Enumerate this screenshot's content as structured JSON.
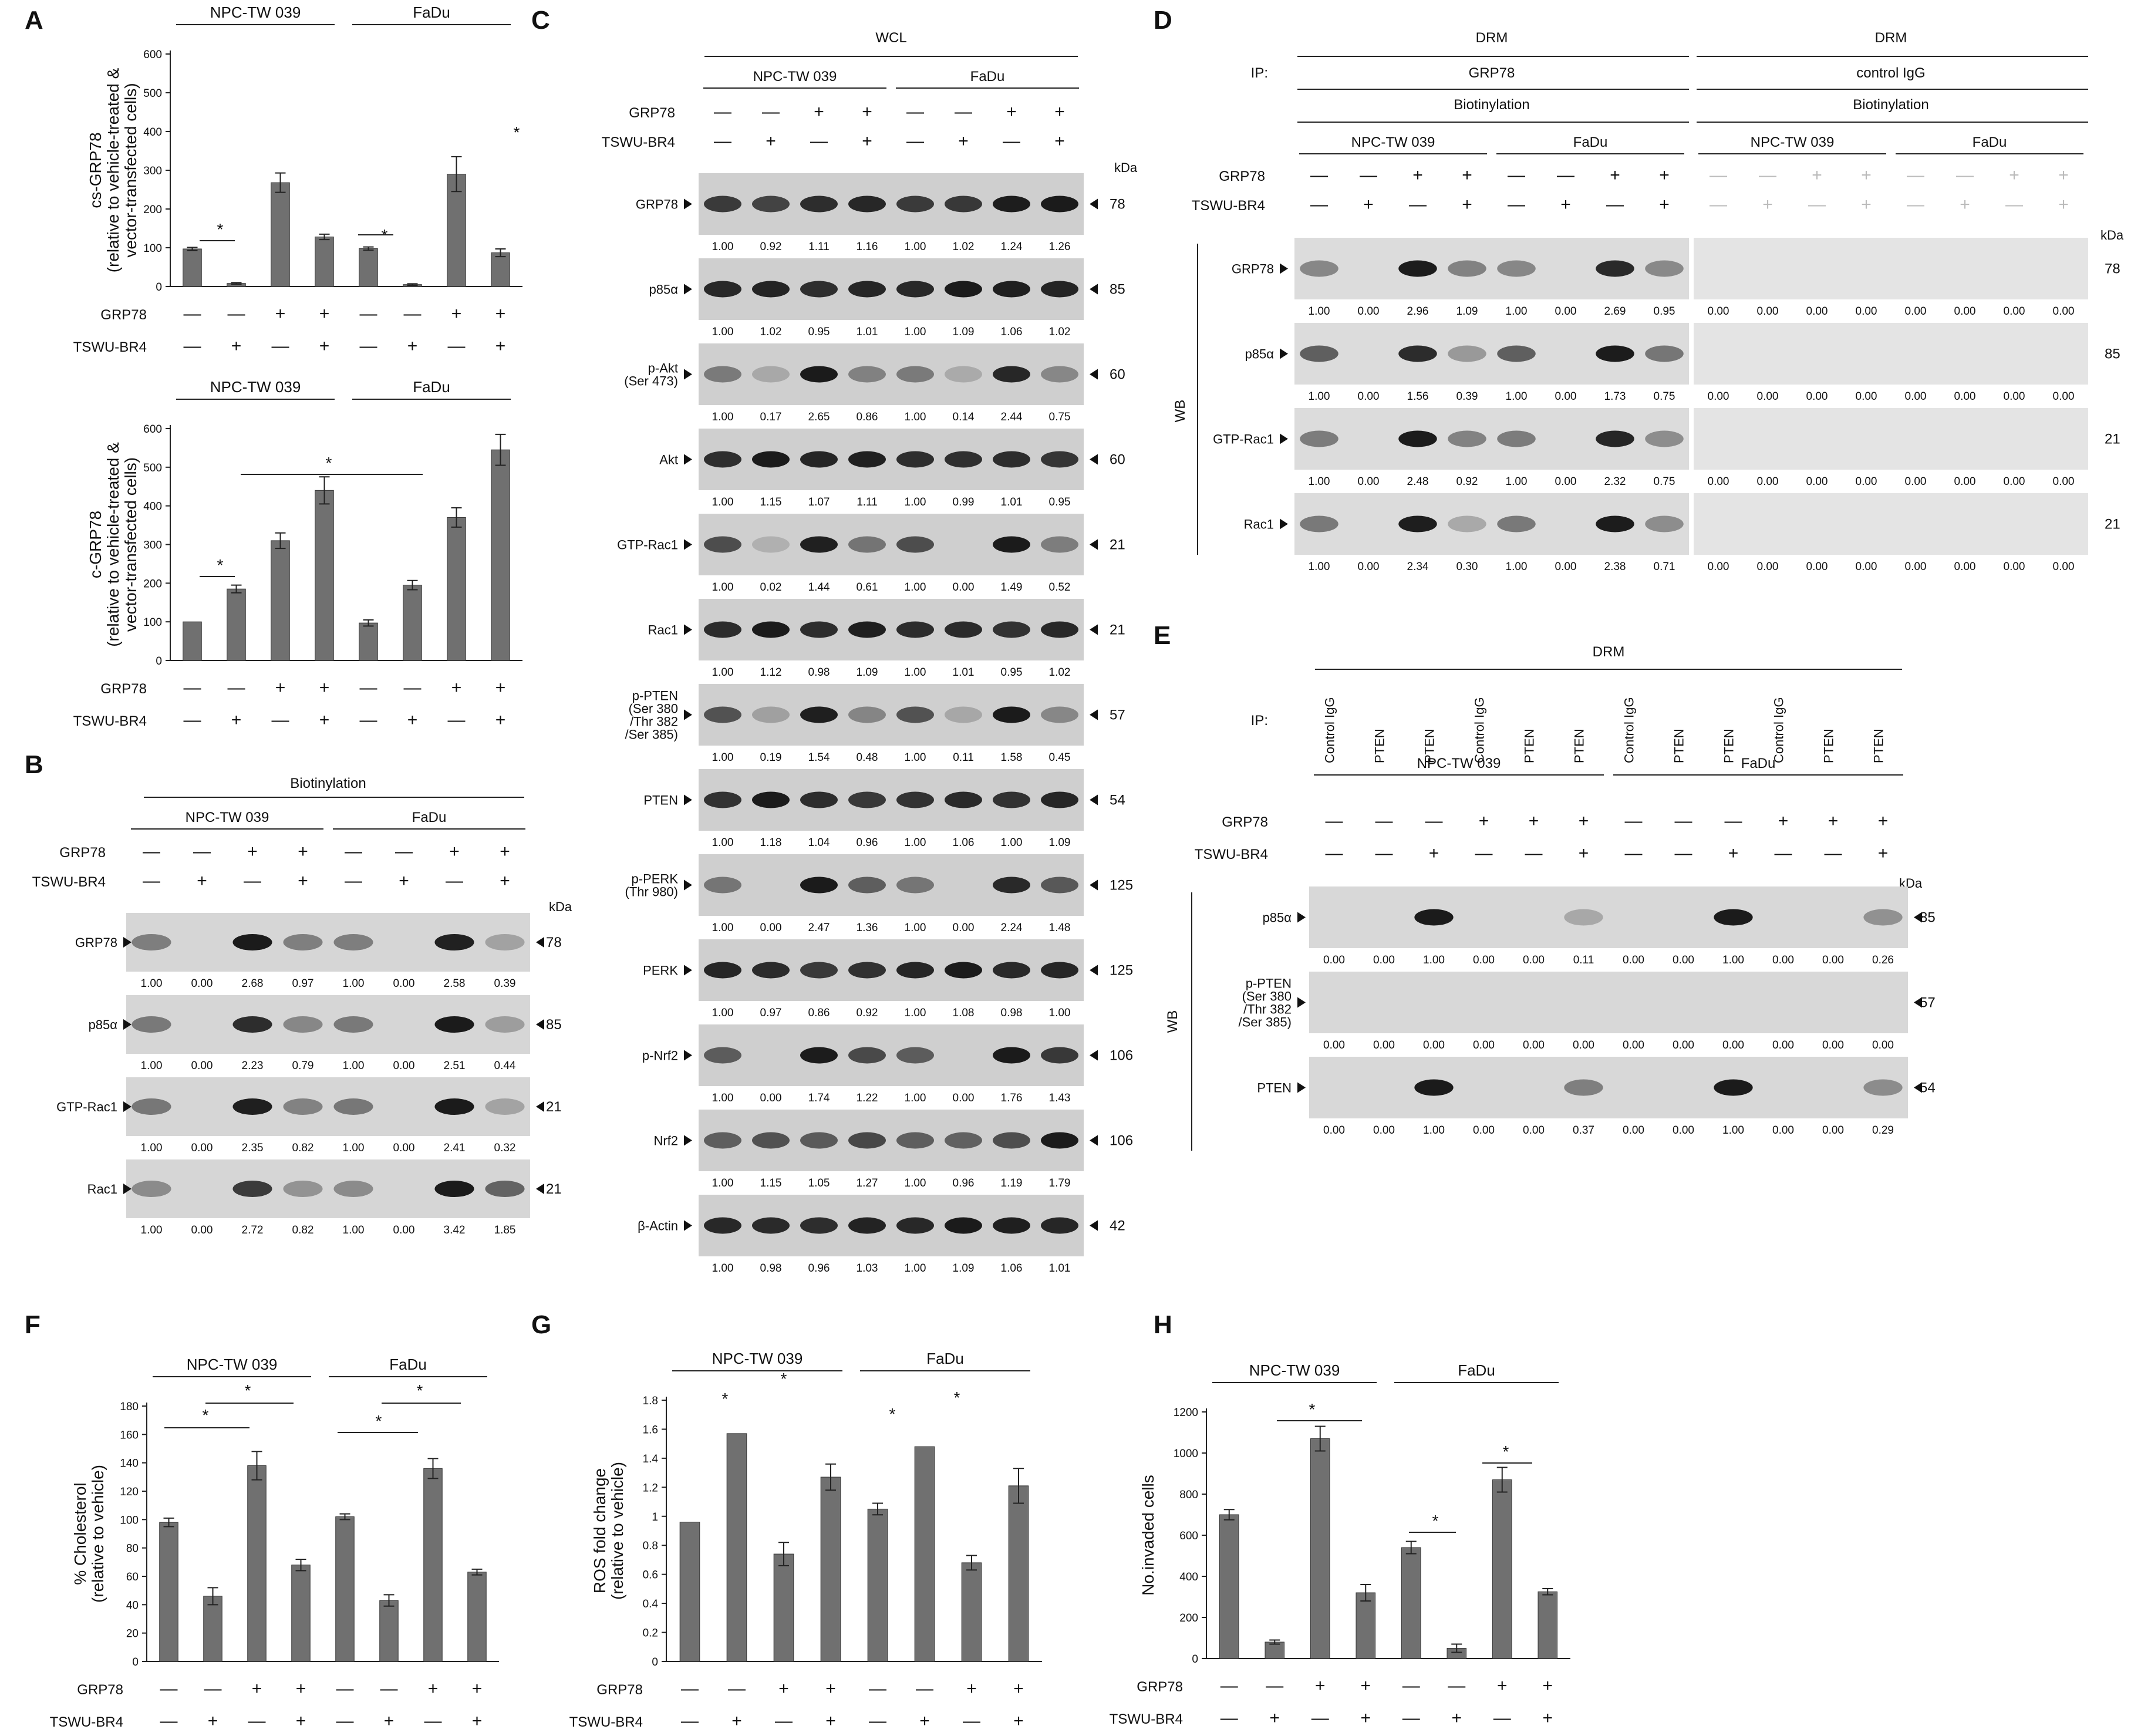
{
  "panels": {
    "A": "A",
    "B": "B",
    "C": "C",
    "D": "D",
    "E": "E",
    "F": "F",
    "G": "G",
    "H": "H"
  },
  "common": {
    "grp78": "GRP78",
    "tswu": "TSWU-BR4",
    "npc": "NPC-TW 039",
    "fadu": "FaDu",
    "kda": "kDa",
    "wb": "WB",
    "star": "*"
  },
  "signs": {
    "grp78": [
      "—",
      "—",
      "+",
      "+",
      "—",
      "—",
      "+",
      "+"
    ],
    "tswu": [
      "—",
      "+",
      "—",
      "+",
      "—",
      "+",
      "—",
      "+"
    ]
  },
  "panel_B": {
    "header": "Biotinylation",
    "blots": [
      {
        "label": "GRP78",
        "kda": "78",
        "vals": [
          "1.00",
          "0.00",
          "2.68",
          "0.97",
          "1.00",
          "0.00",
          "2.58",
          "0.39"
        ]
      },
      {
        "label": "p85α",
        "kda": "85",
        "vals": [
          "1.00",
          "0.00",
          "2.23",
          "0.79",
          "1.00",
          "0.00",
          "2.51",
          "0.44"
        ]
      },
      {
        "label": "GTP-Rac1",
        "kda": "21",
        "vals": [
          "1.00",
          "0.00",
          "2.35",
          "0.82",
          "1.00",
          "0.00",
          "2.41",
          "0.32"
        ]
      },
      {
        "label": "Rac1",
        "kda": "21",
        "vals": [
          "1.00",
          "0.00",
          "2.72",
          "0.82",
          "1.00",
          "0.00",
          "3.42",
          "1.85"
        ]
      }
    ]
  },
  "panel_C": {
    "header": "WCL",
    "blots": [
      {
        "label": "GRP78",
        "kda": "78",
        "vals": [
          "1.00",
          "0.92",
          "1.11",
          "1.16",
          "1.00",
          "1.02",
          "1.24",
          "1.26"
        ]
      },
      {
        "label": "p85α",
        "kda": "85",
        "vals": [
          "1.00",
          "1.02",
          "0.95",
          "1.01",
          "1.00",
          "1.09",
          "1.06",
          "1.02"
        ]
      },
      {
        "label": "p-Akt\n(Ser 473)",
        "kda": "60",
        "vals": [
          "1.00",
          "0.17",
          "2.65",
          "0.86",
          "1.00",
          "0.14",
          "2.44",
          "0.75"
        ]
      },
      {
        "label": "Akt",
        "kda": "60",
        "vals": [
          "1.00",
          "1.15",
          "1.07",
          "1.11",
          "1.00",
          "0.99",
          "1.01",
          "0.95"
        ]
      },
      {
        "label": "GTP-Rac1",
        "kda": "21",
        "vals": [
          "1.00",
          "0.02",
          "1.44",
          "0.61",
          "1.00",
          "0.00",
          "1.49",
          "0.52"
        ]
      },
      {
        "label": "Rac1",
        "kda": "21",
        "vals": [
          "1.00",
          "1.12",
          "0.98",
          "1.09",
          "1.00",
          "1.01",
          "0.95",
          "1.02"
        ]
      },
      {
        "label": "p-PTEN\n(Ser 380\n/Thr 382\n/Ser 385)",
        "kda": "57",
        "vals": [
          "1.00",
          "0.19",
          "1.54",
          "0.48",
          "1.00",
          "0.11",
          "1.58",
          "0.45"
        ]
      },
      {
        "label": "PTEN",
        "kda": "54",
        "vals": [
          "1.00",
          "1.18",
          "1.04",
          "0.96",
          "1.00",
          "1.06",
          "1.00",
          "1.09"
        ]
      },
      {
        "label": "p-PERK\n(Thr 980)",
        "kda": "125",
        "vals": [
          "1.00",
          "0.00",
          "2.47",
          "1.36",
          "1.00",
          "0.00",
          "2.24",
          "1.48"
        ]
      },
      {
        "label": "PERK",
        "kda": "125",
        "vals": [
          "1.00",
          "0.97",
          "0.86",
          "0.92",
          "1.00",
          "1.08",
          "0.98",
          "1.00"
        ]
      },
      {
        "label": "p-Nrf2",
        "kda": "106",
        "vals": [
          "1.00",
          "0.00",
          "1.74",
          "1.22",
          "1.00",
          "0.00",
          "1.76",
          "1.43"
        ]
      },
      {
        "label": "Nrf2",
        "kda": "106",
        "vals": [
          "1.00",
          "1.15",
          "1.05",
          "1.27",
          "1.00",
          "0.96",
          "1.19",
          "1.79"
        ]
      },
      {
        "label": "β-Actin",
        "kda": "42",
        "vals": [
          "1.00",
          "0.98",
          "0.96",
          "1.03",
          "1.00",
          "1.09",
          "1.06",
          "1.01"
        ]
      }
    ]
  },
  "panel_D": {
    "drm": "DRM",
    "ip": "IP:",
    "ip_left": "GRP78",
    "ip_right": "control IgG",
    "biotin": "Biotinylation",
    "blots": [
      {
        "label": "GRP78",
        "kda": "78",
        "vals": [
          "1.00",
          "0.00",
          "2.96",
          "1.09",
          "1.00",
          "0.00",
          "2.69",
          "0.95"
        ]
      },
      {
        "label": "p85α",
        "kda": "85",
        "vals": [
          "1.00",
          "0.00",
          "1.56",
          "0.39",
          "1.00",
          "0.00",
          "1.73",
          "0.75"
        ]
      },
      {
        "label": "GTP-Rac1",
        "kda": "21",
        "vals": [
          "1.00",
          "0.00",
          "2.48",
          "0.92",
          "1.00",
          "0.00",
          "2.32",
          "0.75"
        ]
      },
      {
        "label": "Rac1",
        "kda": "21",
        "vals": [
          "1.00",
          "0.00",
          "2.34",
          "0.30",
          "1.00",
          "0.00",
          "2.38",
          "0.71"
        ]
      }
    ],
    "zero": "0.00"
  },
  "panel_E": {
    "drm": "DRM",
    "ip": "IP:",
    "ip_lanes": [
      "Control IgG",
      "PTEN",
      "PTEN",
      "Control IgG",
      "PTEN",
      "PTEN",
      "Control IgG",
      "PTEN",
      "PTEN",
      "Control IgG",
      "PTEN",
      "PTEN"
    ],
    "grp78": [
      "—",
      "—",
      "—",
      "+",
      "+",
      "+",
      "—",
      "—",
      "—",
      "+",
      "+",
      "+"
    ],
    "tswu": [
      "—",
      "—",
      "+",
      "—",
      "—",
      "+",
      "—",
      "—",
      "+",
      "—",
      "—",
      "+"
    ],
    "blots": [
      {
        "label": "p85α",
        "kda": "85",
        "vals": [
          "0.00",
          "0.00",
          "1.00",
          "0.00",
          "0.00",
          "0.11",
          "0.00",
          "0.00",
          "1.00",
          "0.00",
          "0.00",
          "0.26"
        ]
      },
      {
        "label": "p-PTEN\n(Ser 380\n/Thr 382\n/Ser 385)",
        "kda": "57",
        "vals": [
          "0.00",
          "0.00",
          "0.00",
          "0.00",
          "0.00",
          "0.00",
          "0.00",
          "0.00",
          "0.00",
          "0.00",
          "0.00",
          "0.00"
        ]
      },
      {
        "label": "PTEN",
        "kda": "54",
        "vals": [
          "0.00",
          "0.00",
          "1.00",
          "0.00",
          "0.00",
          "0.37",
          "0.00",
          "0.00",
          "1.00",
          "0.00",
          "0.00",
          "0.29"
        ]
      }
    ]
  },
  "chart_data": [
    {
      "id": "A-top",
      "type": "bar",
      "ylabel": "cs-GRP78\n(relative to vehicle-treated &\nvector-transfected cells)",
      "ylim": [
        0,
        600
      ],
      "ticks": [
        0,
        100,
        200,
        300,
        400,
        500,
        600
      ],
      "values": [
        97,
        8,
        268,
        128,
        98,
        5,
        290,
        87
      ],
      "errors": [
        4,
        2,
        25,
        7,
        4,
        2,
        45,
        10
      ]
    },
    {
      "id": "A-bottom",
      "type": "bar",
      "ylabel": "c-GRP78\n(relative to vehicle-treated &\nvector-transfected cells)",
      "ylim": [
        0,
        600
      ],
      "ticks": [
        0,
        100,
        200,
        300,
        400,
        500,
        600
      ],
      "values": [
        100,
        185,
        310,
        440,
        97,
        195,
        370,
        545
      ],
      "errors": [
        0,
        10,
        20,
        35,
        8,
        12,
        25,
        40
      ]
    },
    {
      "id": "F",
      "type": "bar",
      "ylabel": "% Cholesterol\n(relative to vehicle)",
      "ylim": [
        0,
        180
      ],
      "ticks": [
        0,
        20,
        40,
        60,
        80,
        100,
        120,
        140,
        160,
        180
      ],
      "values": [
        98,
        46,
        138,
        68,
        102,
        43,
        136,
        63
      ],
      "errors": [
        3,
        6,
        10,
        4,
        2,
        4,
        7,
        2
      ]
    },
    {
      "id": "G",
      "type": "bar",
      "ylabel": "ROS fold change\n(relative to vehicle)",
      "ylim": [
        0,
        1.8
      ],
      "ticks": [
        0,
        0.2,
        0.4,
        0.6,
        0.8,
        1,
        1.2,
        1.4,
        1.6,
        1.8
      ],
      "values": [
        0.96,
        1.57,
        0.74,
        1.27,
        1.05,
        1.48,
        0.68,
        1.21
      ],
      "errors": [
        0,
        0,
        0.08,
        0.09,
        0.04,
        0,
        0.05,
        0.12
      ]
    },
    {
      "id": "H",
      "type": "bar",
      "ylabel": "No.invaded cells",
      "ylim": [
        0,
        1200
      ],
      "ticks": [
        0,
        200,
        400,
        600,
        800,
        1000,
        1200
      ],
      "values": [
        700,
        80,
        1070,
        320,
        540,
        50,
        870,
        325
      ],
      "errors": [
        25,
        10,
        60,
        40,
        30,
        20,
        60,
        15
      ]
    }
  ]
}
